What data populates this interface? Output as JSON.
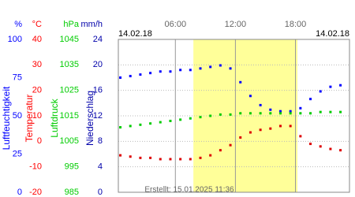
{
  "chart_data": {
    "type": "scatter",
    "date_left": "14.02.18",
    "date_right": "14.02.18",
    "footer": "Erstellt: 15.01.2025 11:36",
    "xlim": [
      0.3,
      23.4
    ],
    "xticks": [
      {
        "value": 6,
        "label": "06:00"
      },
      {
        "value": 12,
        "label": "12:00"
      },
      {
        "value": 18,
        "label": "18:00"
      }
    ],
    "daylight": [
      7.8,
      18.2
    ],
    "grid": true,
    "axes": [
      {
        "unit": "%",
        "name": "Luftfeuchtigkeit",
        "color": "#0000ff",
        "ylim": [
          0,
          100
        ],
        "yticks": [
          0,
          25,
          50,
          75,
          100
        ]
      },
      {
        "unit": "°C",
        "name": "Temperatur",
        "color": "#ff0000",
        "ylim": [
          -20,
          40
        ],
        "yticks": [
          -20,
          -10,
          0,
          10,
          20,
          30,
          40
        ]
      },
      {
        "unit": "hPa",
        "name": "Luftdruck",
        "color": "#00cc00",
        "ylim": [
          985,
          1045
        ],
        "yticks": [
          985,
          995,
          1005,
          1015,
          1025,
          1035,
          1045
        ]
      },
      {
        "unit": "mm/h",
        "name": "Niederschlag",
        "color": "#0000aa",
        "ylim": [
          0,
          24
        ],
        "yticks": [
          0,
          4,
          8,
          12,
          16,
          20,
          24
        ]
      }
    ],
    "x": [
      0.5,
      1.5,
      2.5,
      3.5,
      4.5,
      5.5,
      6.5,
      7.5,
      8.5,
      9.5,
      10.5,
      11.5,
      12.5,
      13.5,
      14.5,
      15.5,
      16.5,
      17.5,
      18.5,
      19.5,
      20.5,
      21.5,
      22.5
    ],
    "series": [
      {
        "axis": 0,
        "color": "#0000ff",
        "values": [
          75,
          76,
          77,
          78,
          79,
          79,
          80,
          80,
          81,
          82,
          83,
          81,
          72,
          63,
          57,
          54,
          53,
          53,
          55,
          61,
          66,
          69,
          70
        ]
      },
      {
        "axis": 1,
        "color": "#dd0000",
        "values": [
          -5.5,
          -6,
          -6.5,
          -6.5,
          -7,
          -7,
          -7,
          -7,
          -6.5,
          -5.5,
          -3.5,
          -1.5,
          1.5,
          3.5,
          4.5,
          5,
          6,
          6,
          2,
          -1,
          -2,
          -3,
          -3.5
        ]
      },
      {
        "axis": 2,
        "color": "#00cc00",
        "values": [
          1010.5,
          1011,
          1011.5,
          1012,
          1012.5,
          1013,
          1013.5,
          1014,
          1014.5,
          1015,
          1015.5,
          1015.5,
          1016,
          1016,
          1016,
          1016,
          1016,
          1016,
          1016,
          1016,
          1016.5,
          1016.5,
          1016.5
        ]
      }
    ]
  }
}
